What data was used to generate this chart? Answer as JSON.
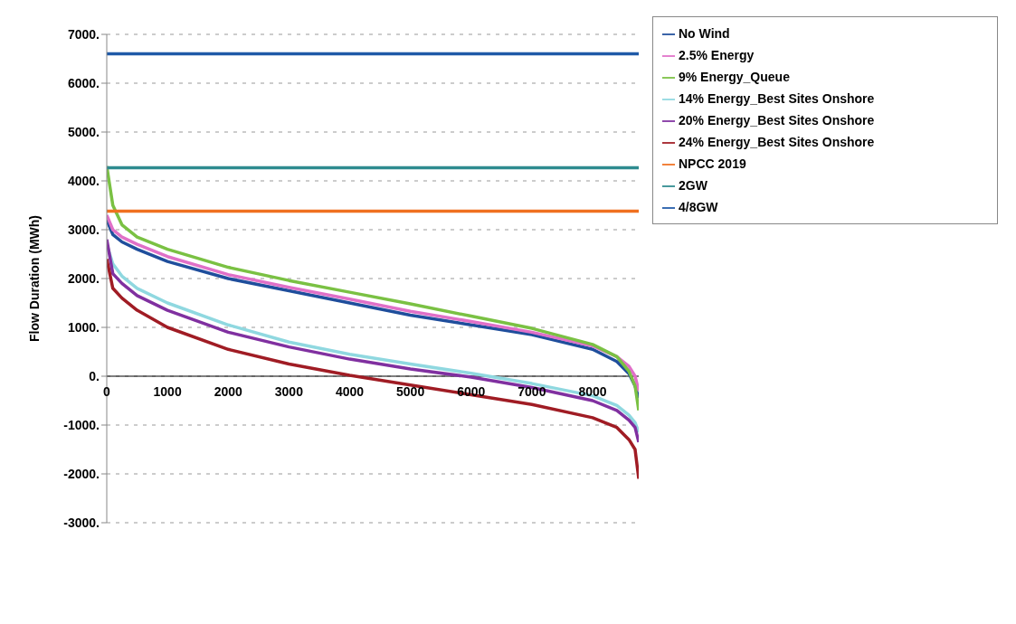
{
  "chart_data": {
    "type": "line",
    "ylabel": "Flow Duration (MWh)",
    "x": [
      0,
      100,
      250,
      500,
      1000,
      2000,
      3000,
      4000,
      5000,
      6000,
      7000,
      8000,
      8400,
      8600,
      8700,
      8760
    ],
    "series": [
      {
        "name": "No Wind",
        "color": "#1f4e9c",
        "values": [
          3200,
          2900,
          2750,
          2600,
          2350,
          2000,
          1750,
          1500,
          1250,
          1050,
          850,
          550,
          300,
          50,
          -200,
          -450
        ]
      },
      {
        "name": "2.5% Energy",
        "color": "#e070c8",
        "values": [
          3300,
          3000,
          2850,
          2700,
          2450,
          2080,
          1820,
          1580,
          1330,
          1120,
          900,
          620,
          400,
          200,
          0,
          -300
        ]
      },
      {
        "name": "9% Energy_Queue",
        "color": "#7ac143",
        "values": [
          4300,
          3500,
          3100,
          2850,
          2600,
          2230,
          1960,
          1720,
          1480,
          1230,
          980,
          650,
          400,
          100,
          -200,
          -700
        ]
      },
      {
        "name": "14% Energy_Best Sites Onshore",
        "color": "#8fd8e0",
        "values": [
          2700,
          2300,
          2050,
          1800,
          1500,
          1050,
          700,
          450,
          250,
          60,
          -150,
          -400,
          -600,
          -800,
          -950,
          -1150
        ]
      },
      {
        "name": "20% Energy_Best Sites Onshore",
        "color": "#8030a0",
        "values": [
          2800,
          2100,
          1900,
          1650,
          1350,
          900,
          600,
          350,
          150,
          -20,
          -230,
          -500,
          -700,
          -900,
          -1050,
          -1350
        ]
      },
      {
        "name": "24% Energy_Best Sites Onshore",
        "color": "#a01c24",
        "values": [
          2400,
          1800,
          1600,
          1350,
          1000,
          550,
          250,
          20,
          -180,
          -380,
          -580,
          -850,
          -1050,
          -1300,
          -1500,
          -2100
        ]
      },
      {
        "name": "NPCC 2019",
        "color": "#f07020",
        "values": [
          3380,
          3380,
          3380,
          3380,
          3380,
          3380,
          3380,
          3380,
          3380,
          3380,
          3380,
          3380,
          3380,
          3380,
          3380,
          3380
        ]
      },
      {
        "name": "2GW",
        "color": "#2e8b8f",
        "values": [
          4270,
          4270,
          4270,
          4270,
          4270,
          4270,
          4270,
          4270,
          4270,
          4270,
          4270,
          4270,
          4270,
          4270,
          4270,
          4270
        ]
      },
      {
        "name": "4/8GW",
        "color": "#1f5aa8",
        "values": [
          6600,
          6600,
          6600,
          6600,
          6600,
          6600,
          6600,
          6600,
          6600,
          6600,
          6600,
          6600,
          6600,
          6600,
          6600,
          6600
        ]
      }
    ],
    "xlim": [
      0,
      8760
    ],
    "xticks": [
      0,
      1000,
      2000,
      3000,
      4000,
      5000,
      6000,
      7000,
      8000
    ],
    "ylim": [
      -3000,
      7000
    ],
    "yticks": [
      {
        "value": -3000,
        "label": "-3000."
      },
      {
        "value": -2000,
        "label": "-2000."
      },
      {
        "value": -1000,
        "label": "-1000."
      },
      {
        "value": 0,
        "label": "0."
      },
      {
        "value": 1000,
        "label": "1000."
      },
      {
        "value": 2000,
        "label": "2000."
      },
      {
        "value": 3000,
        "label": "3000."
      },
      {
        "value": 4000,
        "label": "4000."
      },
      {
        "value": 5000,
        "label": "5000."
      },
      {
        "value": 6000,
        "label": "6000."
      },
      {
        "value": 7000,
        "label": "7000."
      }
    ],
    "grid": "y",
    "legend": "right",
    "marker": "none",
    "line_style": "solid"
  }
}
